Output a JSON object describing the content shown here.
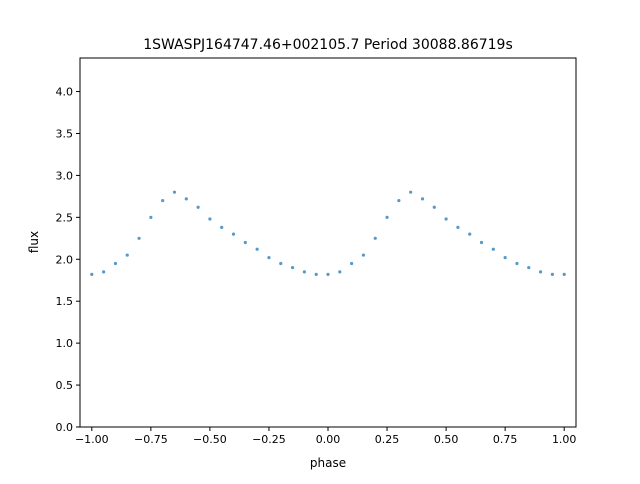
{
  "chart_data": {
    "type": "scatter",
    "title": "1SWASPJ164747.46+002105.7 Period 30088.86719s",
    "xlabel": "phase",
    "ylabel": "flux",
    "xlim": [
      -1.05,
      1.05
    ],
    "ylim": [
      0.0,
      4.4
    ],
    "x_ticks": [
      -1.0,
      -0.75,
      -0.5,
      -0.25,
      0.0,
      0.25,
      0.5,
      0.75,
      1.0
    ],
    "x_tick_labels": [
      "−1.00",
      "−0.75",
      "−0.50",
      "−0.25",
      "0.00",
      "0.25",
      "0.50",
      "0.75",
      "1.00"
    ],
    "y_ticks": [
      0.0,
      0.5,
      1.0,
      1.5,
      2.0,
      2.5,
      3.0,
      3.5,
      4.0
    ],
    "y_tick_labels": [
      "0.0",
      "0.5",
      "1.0",
      "1.5",
      "2.0",
      "2.5",
      "3.0",
      "3.5",
      "4.0"
    ],
    "grid": false,
    "legend": "none",
    "marker_color": "#1f77b4",
    "series": [
      {
        "points": [
          [
            -1.0,
            1.82
          ],
          [
            -0.95,
            1.85
          ],
          [
            -0.9,
            1.95
          ],
          [
            -0.85,
            2.05
          ],
          [
            -0.8,
            2.25
          ],
          [
            -0.75,
            2.5
          ],
          [
            -0.7,
            2.7
          ],
          [
            -0.65,
            2.8
          ],
          [
            -0.6,
            2.72
          ],
          [
            -0.55,
            2.62
          ],
          [
            -0.5,
            2.48
          ],
          [
            -0.45,
            2.38
          ],
          [
            -0.4,
            2.3
          ],
          [
            -0.35,
            2.2
          ],
          [
            -0.3,
            2.12
          ],
          [
            -0.25,
            2.02
          ],
          [
            -0.2,
            1.95
          ],
          [
            -0.15,
            1.9
          ],
          [
            -0.1,
            1.85
          ],
          [
            -0.05,
            1.82
          ],
          [
            0.0,
            1.82
          ],
          [
            0.05,
            1.85
          ],
          [
            0.1,
            1.95
          ],
          [
            0.15,
            2.05
          ],
          [
            0.2,
            2.25
          ],
          [
            0.25,
            2.5
          ],
          [
            0.3,
            2.7
          ],
          [
            0.35,
            2.8
          ],
          [
            0.4,
            2.72
          ],
          [
            0.45,
            2.62
          ],
          [
            0.5,
            2.48
          ],
          [
            0.55,
            2.38
          ],
          [
            0.6,
            2.3
          ],
          [
            0.65,
            2.2
          ],
          [
            0.7,
            2.12
          ],
          [
            0.75,
            2.02
          ],
          [
            0.8,
            1.95
          ],
          [
            0.85,
            1.9
          ],
          [
            0.9,
            1.85
          ],
          [
            0.95,
            1.82
          ],
          [
            1.0,
            1.82
          ]
        ]
      }
    ]
  }
}
